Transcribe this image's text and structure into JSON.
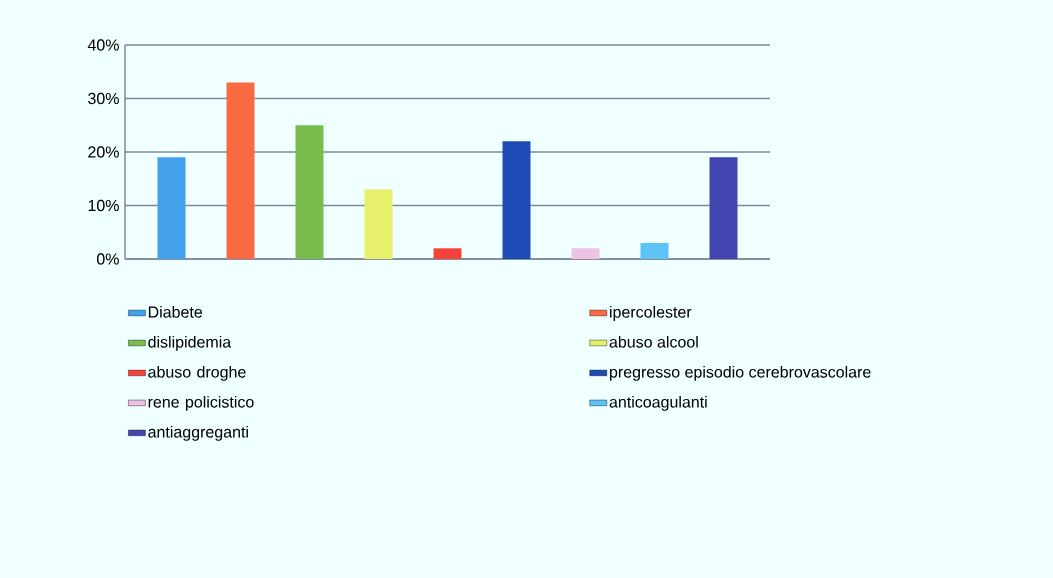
{
  "chart_data": {
    "type": "bar",
    "categories": [
      null
    ],
    "series": [
      {
        "name": "Diabete",
        "color": "#42a1e8",
        "values": [
          19
        ]
      },
      {
        "name": "ipercolester",
        "color": "#f96a42",
        "values": [
          33
        ]
      },
      {
        "name": "dislipidemia",
        "color": "#79bd4f",
        "values": [
          25
        ]
      },
      {
        "name": "abuso alcool",
        "color": "#e6f06a",
        "values": [
          13
        ]
      },
      {
        "name": "abuso droghe",
        "color": "#f7423a",
        "values": [
          2
        ]
      },
      {
        "name": "pregresso episodio cerebrovascolare",
        "color": "#1f4bb7",
        "values": [
          22
        ]
      },
      {
        "name": "rene policistico",
        "color": "#ecc3e3",
        "values": [
          2
        ]
      },
      {
        "name": "anticoagulanti",
        "color": "#5cc3f7",
        "values": [
          3
        ]
      },
      {
        "name": "antiaggreganti",
        "color": "#4245b0",
        "values": [
          19
        ]
      }
    ],
    "ylim": [
      0,
      40
    ],
    "yticks": [
      {
        "value": 0,
        "label": "0%"
      },
      {
        "value": 10,
        "label": "10%"
      },
      {
        "value": 20,
        "label": "20%"
      },
      {
        "value": 30,
        "label": "30%"
      },
      {
        "value": 40,
        "label": "40%"
      }
    ],
    "grid": "y",
    "legend": "bottom"
  }
}
